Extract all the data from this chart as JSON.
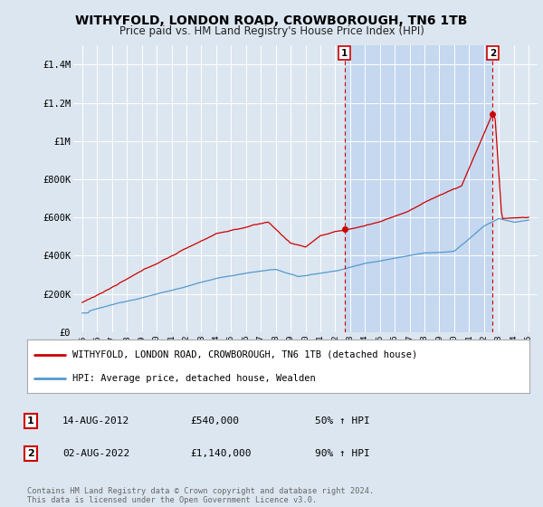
{
  "title": "WITHYFOLD, LONDON ROAD, CROWBOROUGH, TN6 1TB",
  "subtitle": "Price paid vs. HM Land Registry's House Price Index (HPI)",
  "bg_color": "#dce6f0",
  "plot_bg_color": "#dce6f0",
  "shade_color": "#c5d8f0",
  "ylim": [
    0,
    1500000
  ],
  "yticks": [
    0,
    200000,
    400000,
    600000,
    800000,
    1000000,
    1200000,
    1400000
  ],
  "ytick_labels": [
    "£0",
    "£200K",
    "£400K",
    "£600K",
    "£800K",
    "£1M",
    "£1.2M",
    "£1.4M"
  ],
  "vline1_year": 2012.62,
  "vline2_year": 2022.58,
  "marker1_year": 2012.62,
  "marker1_val": 540000,
  "marker2_year": 2022.58,
  "marker2_val": 1140000,
  "legend_line1": "WITHYFOLD, LONDON ROAD, CROWBOROUGH, TN6 1TB (detached house)",
  "legend_line2": "HPI: Average price, detached house, Wealden",
  "annotation1_label": "1",
  "annotation1_date": "14-AUG-2012",
  "annotation1_price": "£540,000",
  "annotation1_hpi": "50% ↑ HPI",
  "annotation2_label": "2",
  "annotation2_date": "02-AUG-2022",
  "annotation2_price": "£1,140,000",
  "annotation2_hpi": "90% ↑ HPI",
  "footer": "Contains HM Land Registry data © Crown copyright and database right 2024.\nThis data is licensed under the Open Government Licence v3.0.",
  "line_color_red": "#cc0000",
  "line_color_blue": "#5599cc",
  "vline_color": "#cc0000",
  "white": "#ffffff"
}
